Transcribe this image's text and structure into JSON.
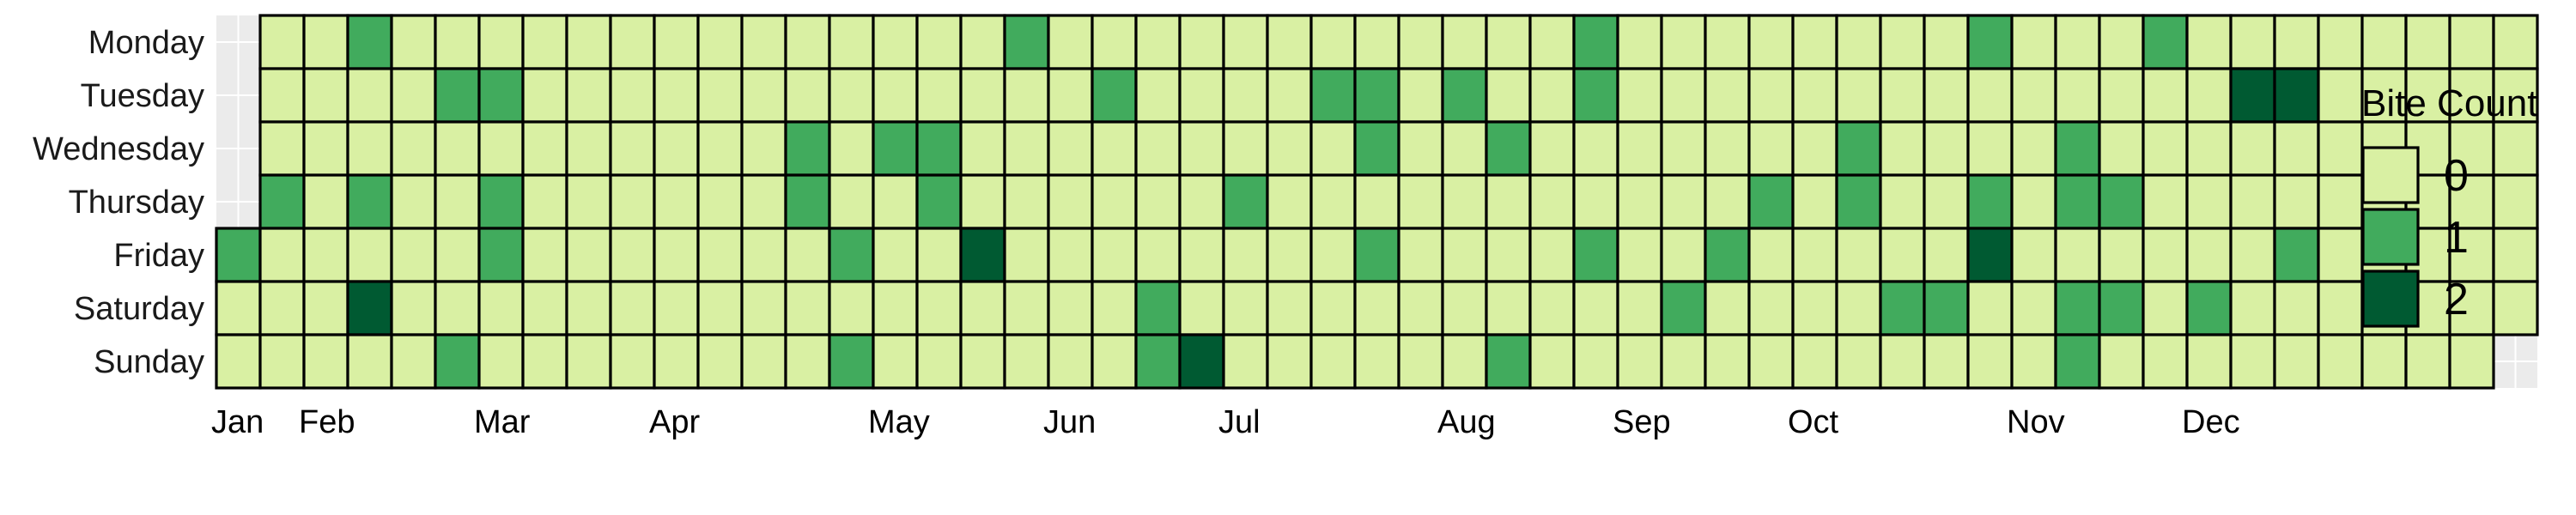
{
  "colors": {
    "panel_bg": "#ebebeb",
    "grid_line": "#ffffff",
    "cell_border": "#000000",
    "count_0": "#d9f0a3",
    "count_1": "#41ab5d",
    "count_2": "#005a32"
  },
  "chart_data": {
    "type": "heatmap",
    "title": "",
    "xlabel": "",
    "ylabel": "",
    "year_days": 366,
    "first_day": "Friday",
    "y_categories": [
      "Monday",
      "Tuesday",
      "Wednesday",
      "Thursday",
      "Friday",
      "Saturday",
      "Sunday"
    ],
    "x_tick_labels": [
      "Jan",
      "Feb",
      "Mar",
      "Apr",
      "May",
      "Jun",
      "Jul",
      "Aug",
      "Sep",
      "Oct",
      "Nov",
      "Dec"
    ],
    "x_tick_weeks": [
      0,
      2,
      6,
      10,
      15,
      19,
      23,
      28,
      32,
      36,
      41,
      45
    ],
    "legend": {
      "title": "Bite Count",
      "entries": [
        {
          "label": "0",
          "value": 0
        },
        {
          "label": "1",
          "value": 1
        },
        {
          "label": "2",
          "value": 2
        }
      ]
    },
    "default_value": 0,
    "nonzero_cells": [
      {
        "week": 3,
        "day": "Monday",
        "value": 1
      },
      {
        "week": 18,
        "day": "Monday",
        "value": 1
      },
      {
        "week": 31,
        "day": "Monday",
        "value": 1
      },
      {
        "week": 40,
        "day": "Monday",
        "value": 1
      },
      {
        "week": 44,
        "day": "Monday",
        "value": 1
      },
      {
        "week": 5,
        "day": "Tuesday",
        "value": 1
      },
      {
        "week": 6,
        "day": "Tuesday",
        "value": 1
      },
      {
        "week": 20,
        "day": "Tuesday",
        "value": 1
      },
      {
        "week": 25,
        "day": "Tuesday",
        "value": 1
      },
      {
        "week": 26,
        "day": "Tuesday",
        "value": 1
      },
      {
        "week": 28,
        "day": "Tuesday",
        "value": 1
      },
      {
        "week": 31,
        "day": "Tuesday",
        "value": 1
      },
      {
        "week": 46,
        "day": "Tuesday",
        "value": 2
      },
      {
        "week": 47,
        "day": "Tuesday",
        "value": 2
      },
      {
        "week": 13,
        "day": "Wednesday",
        "value": 1
      },
      {
        "week": 15,
        "day": "Wednesday",
        "value": 1
      },
      {
        "week": 16,
        "day": "Wednesday",
        "value": 1
      },
      {
        "week": 26,
        "day": "Wednesday",
        "value": 1
      },
      {
        "week": 29,
        "day": "Wednesday",
        "value": 1
      },
      {
        "week": 37,
        "day": "Wednesday",
        "value": 1
      },
      {
        "week": 42,
        "day": "Wednesday",
        "value": 1
      },
      {
        "week": 1,
        "day": "Thursday",
        "value": 1
      },
      {
        "week": 3,
        "day": "Thursday",
        "value": 1
      },
      {
        "week": 6,
        "day": "Thursday",
        "value": 1
      },
      {
        "week": 13,
        "day": "Thursday",
        "value": 1
      },
      {
        "week": 16,
        "day": "Thursday",
        "value": 1
      },
      {
        "week": 23,
        "day": "Thursday",
        "value": 1
      },
      {
        "week": 35,
        "day": "Thursday",
        "value": 1
      },
      {
        "week": 37,
        "day": "Thursday",
        "value": 1
      },
      {
        "week": 40,
        "day": "Thursday",
        "value": 1
      },
      {
        "week": 42,
        "day": "Thursday",
        "value": 1
      },
      {
        "week": 43,
        "day": "Thursday",
        "value": 1
      },
      {
        "week": 0,
        "day": "Friday",
        "value": 1
      },
      {
        "week": 6,
        "day": "Friday",
        "value": 1
      },
      {
        "week": 14,
        "day": "Friday",
        "value": 1
      },
      {
        "week": 17,
        "day": "Friday",
        "value": 2
      },
      {
        "week": 26,
        "day": "Friday",
        "value": 1
      },
      {
        "week": 31,
        "day": "Friday",
        "value": 1
      },
      {
        "week": 34,
        "day": "Friday",
        "value": 1
      },
      {
        "week": 40,
        "day": "Friday",
        "value": 2
      },
      {
        "week": 47,
        "day": "Friday",
        "value": 1
      },
      {
        "week": 3,
        "day": "Saturday",
        "value": 2
      },
      {
        "week": 21,
        "day": "Saturday",
        "value": 1
      },
      {
        "week": 33,
        "day": "Saturday",
        "value": 1
      },
      {
        "week": 38,
        "day": "Saturday",
        "value": 1
      },
      {
        "week": 39,
        "day": "Saturday",
        "value": 1
      },
      {
        "week": 42,
        "day": "Saturday",
        "value": 1
      },
      {
        "week": 43,
        "day": "Saturday",
        "value": 1
      },
      {
        "week": 45,
        "day": "Saturday",
        "value": 1
      },
      {
        "week": 5,
        "day": "Sunday",
        "value": 1
      },
      {
        "week": 14,
        "day": "Sunday",
        "value": 1
      },
      {
        "week": 21,
        "day": "Sunday",
        "value": 1
      },
      {
        "week": 22,
        "day": "Sunday",
        "value": 2
      },
      {
        "week": 29,
        "day": "Sunday",
        "value": 1
      },
      {
        "week": 42,
        "day": "Sunday",
        "value": 1
      }
    ]
  }
}
